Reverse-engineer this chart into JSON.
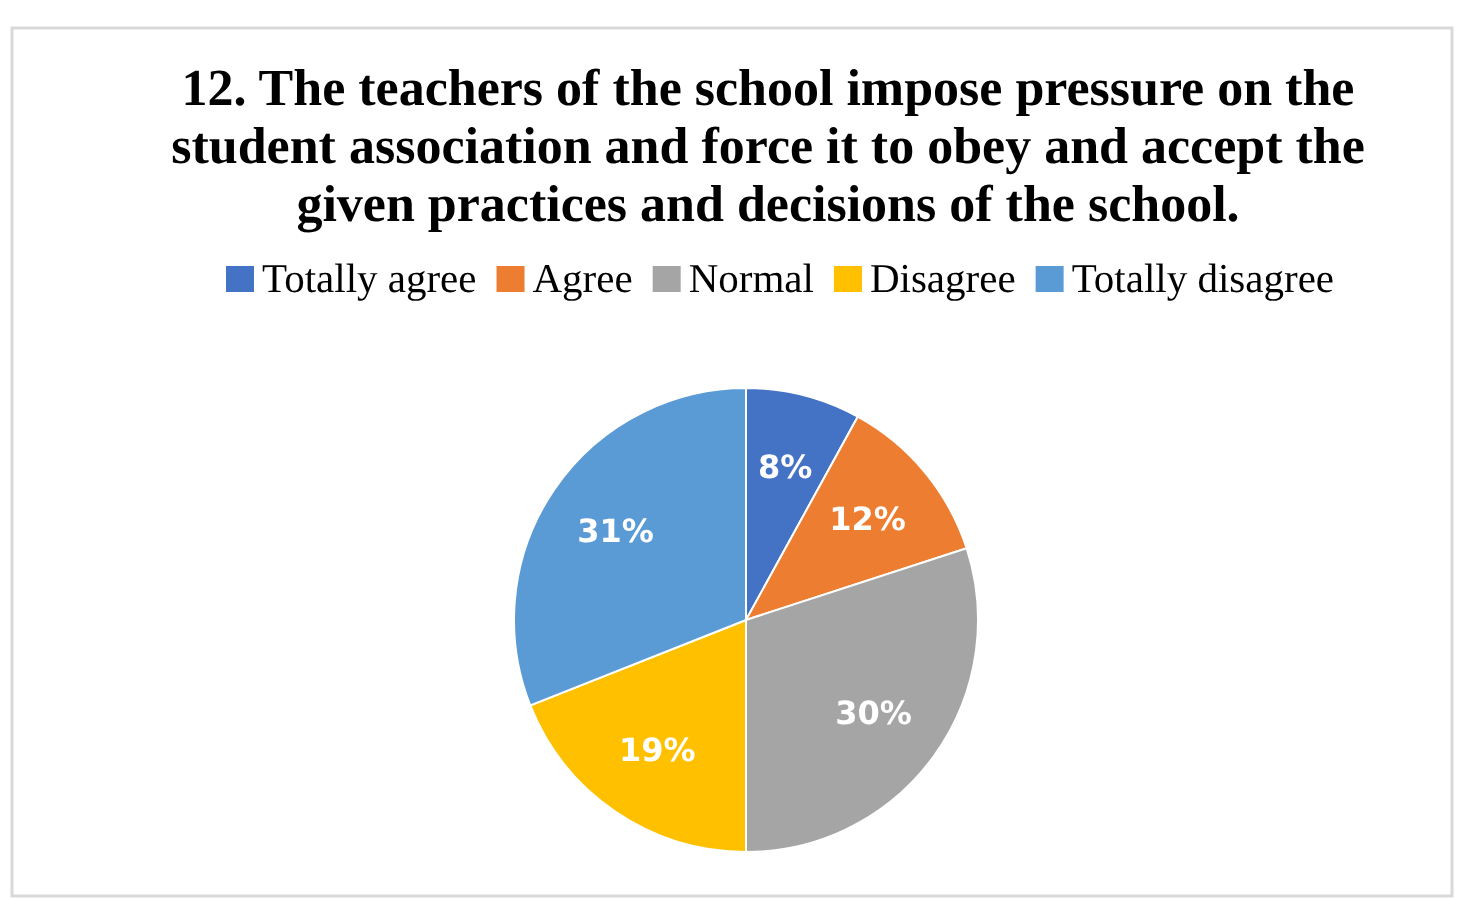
{
  "chart_data": {
    "type": "pie",
    "title": "12. The teachers of the school impose pressure on the student association and force it to obey and accept the given practices and decisions of the school.",
    "categories": [
      "Totally agree",
      "Agree",
      "Normal",
      "Disagree",
      "Totally disagree"
    ],
    "values": [
      8,
      12,
      30,
      19,
      31
    ],
    "colors": [
      "#4472c4",
      "#ed7d31",
      "#a5a5a5",
      "#ffc000",
      "#5b9bd5"
    ],
    "value_labels": [
      "8%",
      "12%",
      "30%",
      "19%",
      "31%"
    ],
    "legend": "top"
  }
}
